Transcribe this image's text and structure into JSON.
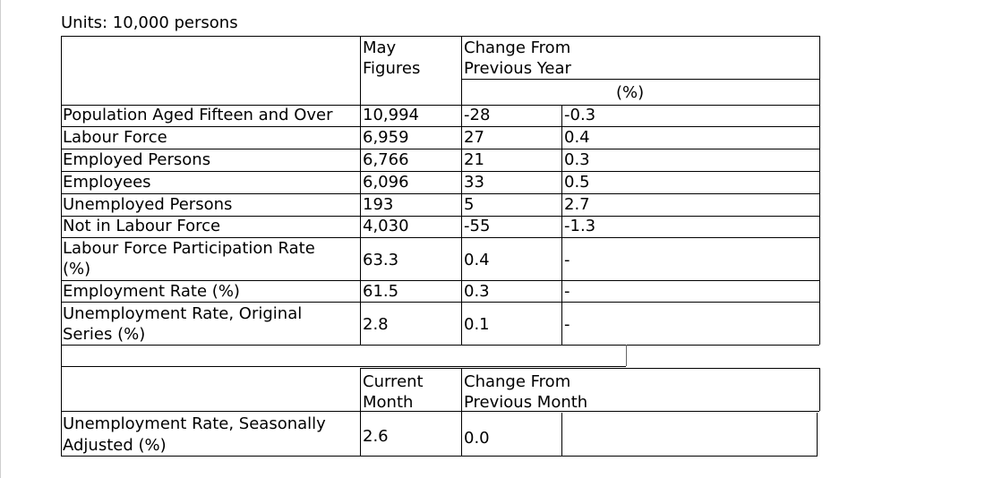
{
  "units": "Units: 10,000 persons",
  "headers": {
    "col1": [
      "May",
      "Figures"
    ],
    "col2": [
      "Change From",
      "Previous Year"
    ],
    "percent": "(%)"
  },
  "rows": [
    {
      "label": "Population Aged Fifteen and Over",
      "value": "10,994",
      "change": "-28",
      "pct": "-0.3"
    },
    {
      "label": "Labour Force",
      "value": "6,959",
      "change": "27",
      "pct": "0.4"
    },
    {
      "label": "Employed Persons",
      "value": "6,766",
      "change": "21",
      "pct": "0.3"
    },
    {
      "label": "Employees",
      "value": "6,096",
      "change": "33",
      "pct": "0.5"
    },
    {
      "label": "Unemployed Persons",
      "value": "193",
      "change": "5",
      "pct": "2.7"
    },
    {
      "label": "Not in Labour Force",
      "value": "4,030",
      "change": "-55",
      "pct": "-1.3"
    },
    {
      "label": [
        "Labour Force Participation Rate",
        "(%)"
      ],
      "value": "63.3",
      "change": "0.4",
      "pct": "-"
    },
    {
      "label": "Employment Rate (%)",
      "value": "61.5",
      "change": "0.3",
      "pct": "-"
    },
    {
      "label": [
        "Unemployment Rate, Original",
        "Series (%)"
      ],
      "value": "2.8",
      "change": "0.1",
      "pct": "-"
    }
  ],
  "second_table": {
    "headers": {
      "col1": [
        "Current",
        "Month"
      ],
      "col2": [
        "Change From",
        "Previous Month"
      ]
    },
    "row": {
      "label": [
        "Unemployment Rate, Seasonally",
        "Adjusted (%)"
      ],
      "value": "2.6",
      "change": "0.0"
    }
  }
}
